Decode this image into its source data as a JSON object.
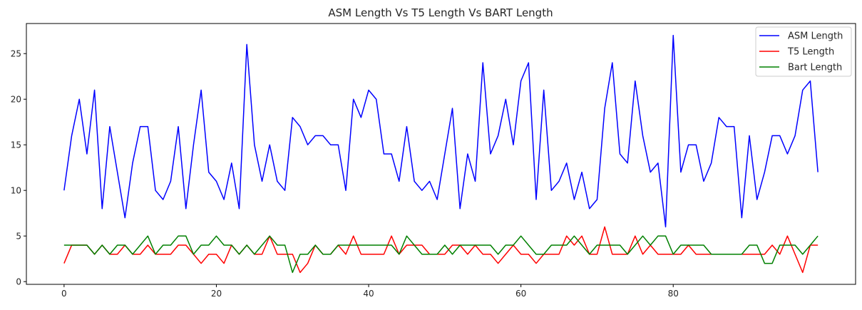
{
  "chart_data": {
    "type": "line",
    "title": "ASM Length Vs T5 Length Vs BART Length",
    "xlabel": "",
    "ylabel": "",
    "xlim": [
      -4.95,
      103.95
    ],
    "ylim": [
      -0.3,
      28.3
    ],
    "xticks": [
      0,
      20,
      40,
      60,
      80
    ],
    "yticks": [
      0,
      5,
      10,
      15,
      20,
      25
    ],
    "grid": false,
    "legend_position": "top-right",
    "series": [
      {
        "name": "ASM Length",
        "color": "#0000ff",
        "values": [
          10,
          16,
          20,
          14,
          21,
          8,
          17,
          12,
          7,
          13,
          17,
          17,
          10,
          9,
          11,
          17,
          8,
          15,
          21,
          12,
          11,
          9,
          13,
          8,
          26,
          15,
          11,
          15,
          11,
          10,
          18,
          17,
          15,
          16,
          16,
          15,
          15,
          10,
          20,
          18,
          21,
          20,
          14,
          14,
          11,
          17,
          11,
          10,
          11,
          9,
          14,
          19,
          8,
          14,
          11,
          24,
          14,
          16,
          20,
          15,
          22,
          24,
          9,
          21,
          10,
          11,
          13,
          9,
          12,
          8,
          9,
          19,
          24,
          14,
          13,
          22,
          16,
          12,
          13,
          6,
          27,
          12,
          15,
          15,
          11,
          13,
          18,
          17,
          17,
          7,
          16,
          9,
          12,
          16,
          16,
          14,
          16,
          21,
          22,
          12
        ]
      },
      {
        "name": "T5 Length",
        "color": "#ff0000",
        "values": [
          2,
          4,
          4,
          4,
          3,
          4,
          3,
          3,
          4,
          3,
          3,
          4,
          3,
          3,
          3,
          4,
          4,
          3,
          2,
          3,
          3,
          2,
          4,
          3,
          4,
          3,
          3,
          5,
          3,
          3,
          3,
          1,
          2,
          4,
          3,
          3,
          4,
          3,
          5,
          3,
          3,
          3,
          3,
          5,
          3,
          4,
          4,
          4,
          3,
          3,
          3,
          4,
          4,
          3,
          4,
          3,
          3,
          2,
          3,
          4,
          3,
          3,
          2,
          3,
          3,
          3,
          5,
          4,
          5,
          3,
          3,
          6,
          3,
          3,
          3,
          5,
          3,
          4,
          3,
          3,
          3,
          3,
          4,
          3,
          3,
          3,
          3,
          3,
          3,
          3,
          3,
          3,
          3,
          4,
          3,
          5,
          3,
          1,
          4,
          4
        ]
      },
      {
        "name": "Bart Length",
        "color": "#008000",
        "values": [
          4,
          4,
          4,
          4,
          3,
          4,
          3,
          4,
          4,
          3,
          4,
          5,
          3,
          4,
          4,
          5,
          5,
          3,
          4,
          4,
          5,
          4,
          4,
          3,
          4,
          3,
          4,
          5,
          4,
          4,
          1,
          3,
          3,
          4,
          3,
          3,
          4,
          4,
          4,
          4,
          4,
          4,
          4,
          4,
          3,
          5,
          4,
          3,
          3,
          3,
          4,
          3,
          4,
          4,
          4,
          4,
          4,
          3,
          4,
          4,
          5,
          4,
          3,
          3,
          4,
          4,
          4,
          5,
          4,
          3,
          4,
          4,
          4,
          4,
          3,
          4,
          5,
          4,
          5,
          5,
          3,
          4,
          4,
          4,
          4,
          3,
          3,
          3,
          3,
          3,
          4,
          4,
          2,
          2,
          4,
          4,
          4,
          3,
          4,
          5
        ]
      }
    ]
  }
}
